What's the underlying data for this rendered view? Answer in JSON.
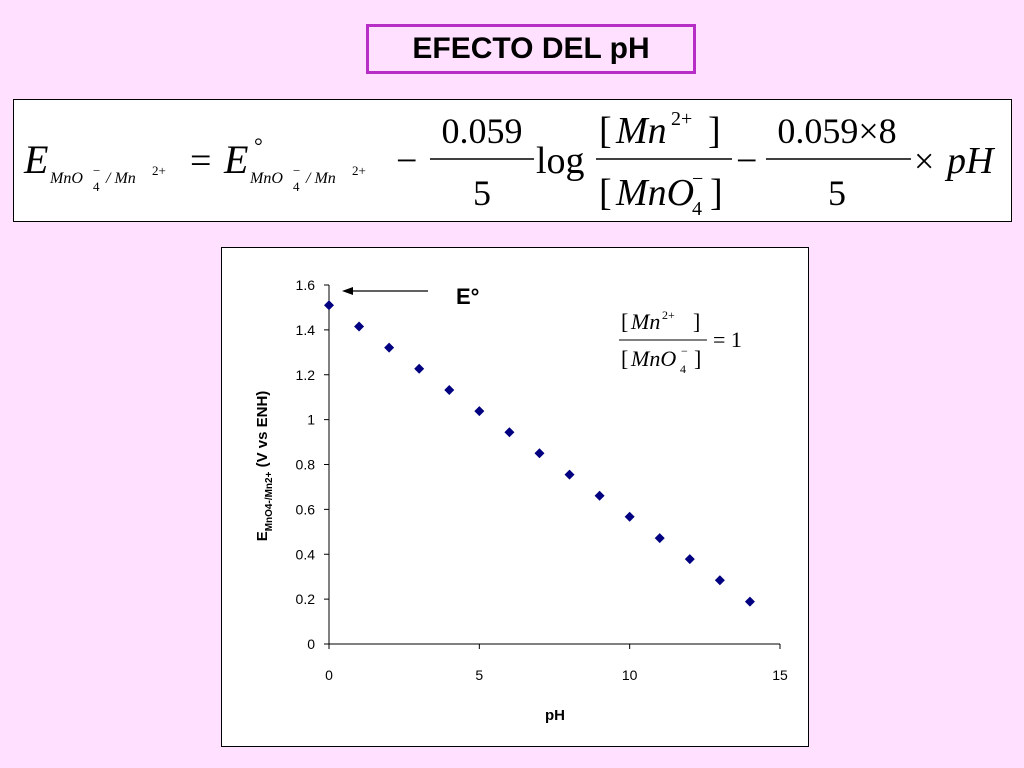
{
  "title": "EFECTO DEL pH",
  "equation": {
    "lhs_E": "E",
    "lhs_sub_a": "MnO",
    "lhs_sub_a_sub": "4",
    "lhs_sub_a_sup": "−",
    "lhs_sub_sep": " / Mn",
    "lhs_sub_b_sup": "2+",
    "equals": "=",
    "rhs_E": "E",
    "rhs_degree": "°",
    "minus1": "−",
    "coef1_num": "0.059",
    "coef1_den": "5",
    "log": "log",
    "frac_num_open": "[",
    "frac_num_mn": "Mn",
    "frac_num_sup": "2+",
    "frac_num_close": "]",
    "frac_den_open": "[",
    "frac_den_mno": "MnO",
    "frac_den_sub": "4",
    "frac_den_sup": "−",
    "frac_den_close": "]",
    "minus2": "−",
    "coef2_num": "0.059×8",
    "coef2_den": "5",
    "times": "×",
    "pH": "pH"
  },
  "chart_data": {
    "type": "scatter",
    "x": [
      0,
      1,
      2,
      3,
      4,
      5,
      6,
      7,
      8,
      9,
      10,
      11,
      12,
      13,
      14
    ],
    "y": [
      1.51,
      1.415,
      1.321,
      1.227,
      1.132,
      1.038,
      0.944,
      0.85,
      0.755,
      0.661,
      0.567,
      0.472,
      0.378,
      0.284,
      0.189
    ],
    "xlim": [
      0,
      15
    ],
    "ylim": [
      0,
      1.6
    ],
    "xticks": [
      "0",
      "5",
      "10",
      "15"
    ],
    "yticks": [
      "0",
      "0.2",
      "0.4",
      "0.6",
      "0.8",
      "1",
      "1.2",
      "1.4",
      "1.6"
    ],
    "xlabel": "pH",
    "ylabel_main": "E",
    "ylabel_sub": "MnO4-/Mn2+",
    "ylabel_rest": " (V vs ENH)",
    "annotation": "E°",
    "inset": {
      "num_open": "[",
      "num_mn": "Mn",
      "num_sup": "2+",
      "num_close": "]",
      "den_open": "[",
      "den_mno": "MnO",
      "den_sub": "4",
      "den_sup": "−",
      "den_close": "]",
      "equals_one": "= 1"
    },
    "grid": false,
    "marker_color": "#000080"
  }
}
